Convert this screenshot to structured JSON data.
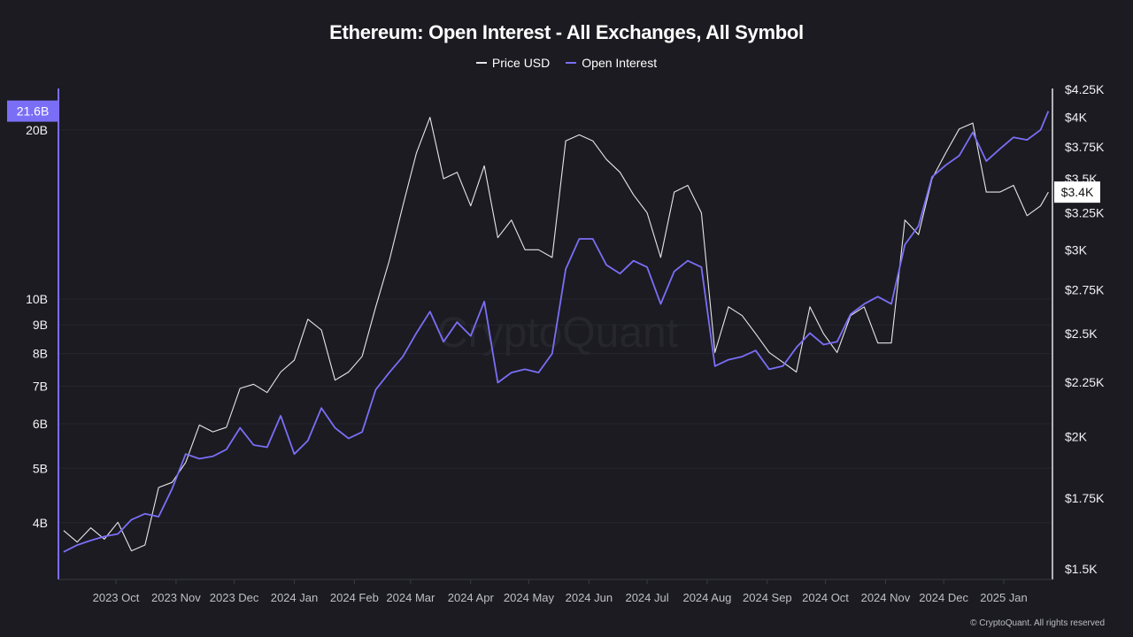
{
  "chart_data": {
    "type": "line",
    "title": "Ethereum: Open Interest - All Exchanges, All Symbol",
    "watermark": "CryptoQuant",
    "footer": "© CryptoQuant. All rights reserved",
    "legend_position": "top",
    "grid": true,
    "colors": {
      "price": "#e6e6ea",
      "open_interest": "#7b6ef6",
      "background": "#1b1b21"
    },
    "x": [
      "2023-09-04",
      "2023-09-11",
      "2023-09-18",
      "2023-09-25",
      "2023-10-02",
      "2023-10-09",
      "2023-10-16",
      "2023-10-23",
      "2023-10-30",
      "2023-11-06",
      "2023-11-13",
      "2023-11-20",
      "2023-11-27",
      "2023-12-04",
      "2023-12-11",
      "2023-12-18",
      "2023-12-25",
      "2024-01-01",
      "2024-01-08",
      "2024-01-15",
      "2024-01-22",
      "2024-01-29",
      "2024-02-05",
      "2024-02-12",
      "2024-02-19",
      "2024-02-26",
      "2024-03-04",
      "2024-03-11",
      "2024-03-18",
      "2024-03-25",
      "2024-04-01",
      "2024-04-08",
      "2024-04-15",
      "2024-04-22",
      "2024-04-29",
      "2024-05-06",
      "2024-05-13",
      "2024-05-20",
      "2024-05-27",
      "2024-06-03",
      "2024-06-10",
      "2024-06-17",
      "2024-06-24",
      "2024-07-01",
      "2024-07-08",
      "2024-07-15",
      "2024-07-22",
      "2024-07-29",
      "2024-08-05",
      "2024-08-12",
      "2024-08-19",
      "2024-08-26",
      "2024-09-02",
      "2024-09-09",
      "2024-09-16",
      "2024-09-23",
      "2024-09-30",
      "2024-10-07",
      "2024-10-14",
      "2024-10-21",
      "2024-10-28",
      "2024-11-04",
      "2024-11-11",
      "2024-11-18",
      "2024-11-25",
      "2024-12-02",
      "2024-12-09",
      "2024-12-16",
      "2024-12-23",
      "2024-12-30",
      "2025-01-06",
      "2025-01-13",
      "2025-01-20",
      "2025-01-24"
    ],
    "x_ticks": [
      "2023 Oct",
      "2023 Nov",
      "2023 Dec",
      "2024 Jan",
      "2024 Feb",
      "2024 Mar",
      "2024 Apr",
      "2024 May",
      "2024 Jun",
      "2024 Jul",
      "2024 Aug",
      "2024 Sep",
      "2024 Oct",
      "2024 Nov",
      "2024 Dec",
      "2025 Jan"
    ],
    "x_tick_dates": [
      "2023-10-01",
      "2023-11-01",
      "2023-12-01",
      "2024-01-01",
      "2024-02-01",
      "2024-03-01",
      "2024-04-01",
      "2024-05-01",
      "2024-06-01",
      "2024-07-01",
      "2024-08-01",
      "2024-09-01",
      "2024-10-01",
      "2024-11-01",
      "2024-12-01",
      "2025-01-01"
    ],
    "y_left": {
      "scale": "log",
      "unit": "B",
      "ylim": [
        3.17,
        23.7
      ],
      "ticks": [
        20,
        10,
        9,
        8,
        7,
        6,
        5,
        4
      ],
      "tick_labels": [
        "20B",
        "10B",
        "9B",
        "8B",
        "7B",
        "6B",
        "5B",
        "4B"
      ],
      "last_value_label": "21.6B"
    },
    "y_right": {
      "scale": "log",
      "unit": "USD",
      "ylim": [
        1500,
        4250
      ],
      "ticks": [
        4250,
        4000,
        3750,
        3500,
        3250,
        3000,
        2750,
        2500,
        2250,
        2000,
        1750,
        1500
      ],
      "tick_labels": [
        "$4.25K",
        "$4K",
        "$3.75K",
        "$3.5K",
        "$3.25K",
        "$3K",
        "$2.75K",
        "$2.5K",
        "$2.25K",
        "$2K",
        "$1.75K",
        "$1.5K"
      ],
      "last_value_label": "$3.4K"
    },
    "series": [
      {
        "name": "Price USD",
        "axis": "right",
        "values": [
          1630,
          1590,
          1640,
          1600,
          1660,
          1560,
          1580,
          1790,
          1810,
          1890,
          2050,
          2020,
          2040,
          2220,
          2240,
          2200,
          2300,
          2360,
          2580,
          2520,
          2260,
          2300,
          2380,
          2650,
          2930,
          3300,
          3700,
          4000,
          3500,
          3550,
          3300,
          3600,
          3080,
          3200,
          3000,
          3000,
          2950,
          3800,
          3850,
          3800,
          3650,
          3550,
          3380,
          3250,
          2950,
          3400,
          3450,
          3250,
          2400,
          2650,
          2600,
          2500,
          2400,
          2350,
          2300,
          2650,
          2500,
          2400,
          2600,
          2650,
          2450,
          2450,
          3200,
          3100,
          3500,
          3700,
          3900,
          3950,
          3400,
          3400,
          3450,
          3230,
          3300,
          3400
        ]
      },
      {
        "name": "Open Interest",
        "axis": "left",
        "values": [
          3.55,
          3.65,
          3.72,
          3.78,
          3.82,
          4.05,
          4.15,
          4.1,
          4.6,
          5.3,
          5.2,
          5.25,
          5.4,
          5.9,
          5.5,
          5.45,
          6.2,
          5.3,
          5.6,
          6.4,
          5.9,
          5.65,
          5.8,
          6.9,
          7.4,
          7.9,
          8.7,
          9.5,
          8.4,
          9.1,
          8.6,
          9.9,
          7.1,
          7.4,
          7.5,
          7.4,
          8.0,
          11.3,
          12.8,
          12.8,
          11.5,
          11.1,
          11.7,
          11.4,
          9.8,
          11.2,
          11.7,
          11.4,
          7.6,
          7.8,
          7.9,
          8.1,
          7.5,
          7.6,
          8.2,
          8.7,
          8.3,
          8.4,
          9.4,
          9.8,
          10.1,
          9.8,
          12.5,
          13.5,
          16.5,
          17.3,
          18.0,
          19.8,
          17.6,
          18.5,
          19.4,
          19.2,
          20.0,
          21.6
        ]
      }
    ]
  }
}
